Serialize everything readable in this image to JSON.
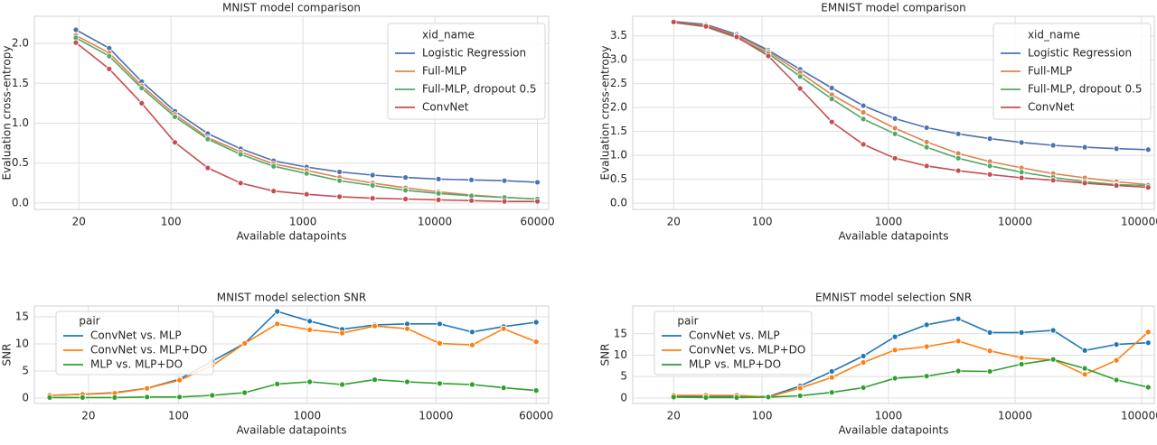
{
  "chart_data": [
    {
      "type": "line",
      "title": "MNIST model comparison",
      "x_label": "Available datapoints",
      "y_label": "Evaluation cross-entropy",
      "x": [
        19,
        34,
        60,
        107,
        190,
        337,
        600,
        1067,
        1897,
        3374,
        6000,
        10670,
        18974,
        33741,
        60000
      ],
      "xlim": [
        9.2,
        73000
      ],
      "xscale": "log",
      "xticks": [
        20,
        100,
        1000,
        10000,
        60000
      ],
      "ylim": [
        -0.08,
        2.34
      ],
      "yticks": [
        {
          "value": 0,
          "label": "0.0"
        },
        {
          "value": 0.5,
          "label": "0.5"
        },
        {
          "value": 1,
          "label": "1.0"
        },
        {
          "value": 1.5,
          "label": "1.5"
        },
        {
          "value": 2,
          "label": "2.0"
        }
      ],
      "grid": true,
      "legend_title": "xid_name",
      "legend": "upper right",
      "series": [
        {
          "name": "Logistic Regression",
          "color": "#4c72b0",
          "values": [
            2.17,
            1.94,
            1.52,
            1.15,
            0.87,
            0.68,
            0.53,
            0.45,
            0.39,
            0.35,
            0.32,
            0.3,
            0.29,
            0.28,
            0.26
          ]
        },
        {
          "name": "Full-MLP",
          "color": "#dd8452",
          "values": [
            2.1,
            1.88,
            1.47,
            1.11,
            0.82,
            0.64,
            0.49,
            0.41,
            0.32,
            0.25,
            0.19,
            0.14,
            0.1,
            0.07,
            0.05
          ]
        },
        {
          "name": "Full-MLP, dropout 0.5",
          "color": "#55a868",
          "values": [
            2.07,
            1.84,
            1.44,
            1.08,
            0.8,
            0.61,
            0.46,
            0.37,
            0.28,
            0.22,
            0.16,
            0.12,
            0.09,
            0.07,
            0.05
          ]
        },
        {
          "name": "ConvNet",
          "color": "#c44e52",
          "values": [
            2.01,
            1.68,
            1.25,
            0.76,
            0.44,
            0.25,
            0.15,
            0.11,
            0.08,
            0.06,
            0.05,
            0.04,
            0.03,
            0.02,
            0.02
          ]
        }
      ]
    },
    {
      "type": "line",
      "title": "EMNIST model comparison",
      "x_label": "Available datapoints",
      "y_label": "Evaluation cross-entropy",
      "x": [
        20,
        36,
        63,
        112,
        200,
        356,
        632,
        1124,
        2000,
        3556,
        6324,
        11245,
        20000,
        35566,
        63245,
        112800
      ],
      "xlim": [
        9.5,
        126000
      ],
      "xscale": "log",
      "xticks": [
        20,
        100,
        1000,
        10000,
        100000
      ],
      "ylim": [
        -0.13,
        3.91
      ],
      "yticks": [
        {
          "value": 0,
          "label": "0.0"
        },
        {
          "value": 0.5,
          "label": "0.5"
        },
        {
          "value": 1,
          "label": "1.0"
        },
        {
          "value": 1.5,
          "label": "1.5"
        },
        {
          "value": 2,
          "label": "2.0"
        },
        {
          "value": 2.5,
          "label": "2.5"
        },
        {
          "value": 3,
          "label": "3.0"
        },
        {
          "value": 3.5,
          "label": "3.5"
        }
      ],
      "grid": true,
      "legend_title": "xid_name",
      "legend": "upper right",
      "series": [
        {
          "name": "Logistic Regression",
          "color": "#4c72b0",
          "values": [
            3.8,
            3.74,
            3.53,
            3.2,
            2.8,
            2.41,
            2.04,
            1.77,
            1.58,
            1.45,
            1.35,
            1.27,
            1.21,
            1.17,
            1.14,
            1.12
          ]
        },
        {
          "name": "Full-MLP",
          "color": "#dd8452",
          "values": [
            3.79,
            3.72,
            3.5,
            3.17,
            2.73,
            2.27,
            1.9,
            1.57,
            1.28,
            1.04,
            0.87,
            0.74,
            0.62,
            0.53,
            0.45,
            0.39
          ]
        },
        {
          "name": "Full-MLP, dropout 0.5",
          "color": "#55a868",
          "values": [
            3.78,
            3.69,
            3.46,
            3.13,
            2.65,
            2.18,
            1.76,
            1.45,
            1.17,
            0.94,
            0.78,
            0.65,
            0.54,
            0.45,
            0.39,
            0.37
          ]
        },
        {
          "name": "ConvNet",
          "color": "#c44e52",
          "values": [
            3.79,
            3.7,
            3.48,
            3.08,
            2.4,
            1.7,
            1.23,
            0.94,
            0.78,
            0.68,
            0.6,
            0.53,
            0.48,
            0.42,
            0.37,
            0.33
          ]
        }
      ]
    },
    {
      "type": "line",
      "title": "MNIST model selection SNR",
      "x_label": "Available datapoints",
      "y_label": "SNR",
      "x": [
        10,
        18,
        32,
        57,
        102,
        183,
        327,
        585,
        1046,
        1870,
        3343,
        5977,
        10686,
        19105,
        33500,
        60000
      ],
      "xlim": [
        7.6,
        75000
      ],
      "xscale": "log",
      "xticks": [
        20,
        100,
        1000,
        10000,
        60000
      ],
      "ylim": [
        -1,
        17
      ],
      "yticks": [
        0,
        5,
        10,
        15
      ],
      "grid": true,
      "legend_title": "pair",
      "legend": "upper left",
      "series": [
        {
          "name": "ConvNet vs. MLP",
          "color": "#1f77b4",
          "values": [
            0.5,
            0.7,
            1.0,
            1.8,
            3.5,
            6.8,
            10.1,
            16.0,
            14.2,
            12.7,
            13.5,
            13.7,
            13.7,
            12.2,
            13.2,
            14.0
          ]
        },
        {
          "name": "ConvNet vs. MLP+DO",
          "color": "#ff7f0e",
          "values": [
            0.5,
            0.7,
            0.9,
            1.8,
            3.3,
            6.0,
            10.1,
            13.7,
            12.6,
            12.0,
            13.3,
            12.8,
            10.1,
            9.8,
            12.8,
            10.4
          ]
        },
        {
          "name": "MLP vs. MLP+DO",
          "color": "#2ca02c",
          "values": [
            0.1,
            0.1,
            0.1,
            0.2,
            0.2,
            0.5,
            1.0,
            2.6,
            3.0,
            2.5,
            3.4,
            3.0,
            2.7,
            2.5,
            1.9,
            1.4
          ]
        }
      ]
    },
    {
      "type": "line",
      "title": "EMNIST model selection SNR",
      "x_label": "Available datapoints",
      "y_label": "SNR",
      "x": [
        20,
        36,
        63,
        112,
        200,
        356,
        632,
        1124,
        2000,
        3556,
        6324,
        11245,
        20000,
        35566,
        63245,
        112800
      ],
      "xlim": [
        9.5,
        126000
      ],
      "xscale": "log",
      "xticks": [
        20,
        100,
        1000,
        10000,
        100000
      ],
      "ylim": [
        -1.3,
        21.5
      ],
      "yticks": [
        0,
        5,
        10,
        15
      ],
      "grid": true,
      "legend_title": "pair",
      "legend": "upper left",
      "series": [
        {
          "name": "ConvNet vs. MLP",
          "color": "#1f77b4",
          "values": [
            0.4,
            0.4,
            0.4,
            0.3,
            2.8,
            6.2,
            9.8,
            14.3,
            17.1,
            18.5,
            15.3,
            15.3,
            15.8,
            11.1,
            12.5,
            12.9
          ]
        },
        {
          "name": "ConvNet vs. MLP+DO",
          "color": "#ff7f0e",
          "values": [
            0.6,
            0.6,
            0.6,
            0.2,
            2.3,
            4.8,
            8.3,
            11.2,
            12.0,
            13.3,
            11.0,
            9.4,
            8.9,
            5.5,
            8.8,
            15.4
          ]
        },
        {
          "name": "MLP vs. MLP+DO",
          "color": "#2ca02c",
          "values": [
            0.2,
            0.1,
            0.1,
            0.2,
            0.5,
            1.3,
            2.4,
            4.6,
            5.1,
            6.3,
            6.2,
            7.9,
            9.0,
            6.9,
            4.2,
            2.5
          ]
        }
      ]
    }
  ]
}
